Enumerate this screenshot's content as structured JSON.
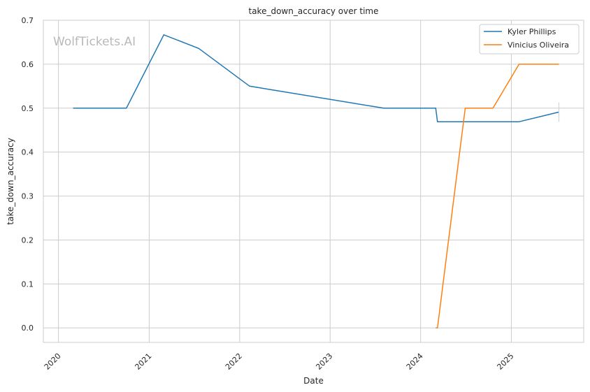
{
  "watermark": "WolfTickets.AI",
  "chart_data": {
    "type": "line",
    "title": "take_down_accuracy over time",
    "xlabel": "Date",
    "ylabel": "take_down_accuracy",
    "xlim": [
      "2019-11-01",
      "2025-10-20"
    ],
    "ylim": [
      -0.033,
      0.7
    ],
    "x_ticks": [
      "2020",
      "2021",
      "2022",
      "2023",
      "2024",
      "2025"
    ],
    "y_ticks": [
      "0.0",
      "0.1",
      "0.2",
      "0.3",
      "0.4",
      "0.5",
      "0.6",
      "0.7"
    ],
    "grid": true,
    "legend_position": "top-right",
    "series": [
      {
        "name": "Kyler Phillips",
        "color": "#1f77b4",
        "points": [
          {
            "x": "2020-02-29",
            "y": 0.5
          },
          {
            "x": "2020-10-01",
            "y": 0.5
          },
          {
            "x": "2021-03-01",
            "y": 0.667
          },
          {
            "x": "2021-07-20",
            "y": 0.636
          },
          {
            "x": "2022-02-10",
            "y": 0.55
          },
          {
            "x": "2023-08-05",
            "y": 0.5
          },
          {
            "x": "2024-03-02",
            "y": 0.5
          },
          {
            "x": "2024-03-09",
            "y": 0.469
          },
          {
            "x": "2025-01-31",
            "y": 0.469
          },
          {
            "x": "2025-07-12",
            "y": 0.491
          }
        ]
      },
      {
        "name": "Vinicius Oliveira",
        "color": "#ff7f0e",
        "points": [
          {
            "x": "2024-03-02",
            "y": 0.0
          },
          {
            "x": "2024-03-09",
            "y": 0.0
          },
          {
            "x": "2024-06-29",
            "y": 0.5
          },
          {
            "x": "2024-10-19",
            "y": 0.5
          },
          {
            "x": "2025-02-01",
            "y": 0.6
          },
          {
            "x": "2025-07-12",
            "y": 0.6
          }
        ]
      }
    ]
  }
}
